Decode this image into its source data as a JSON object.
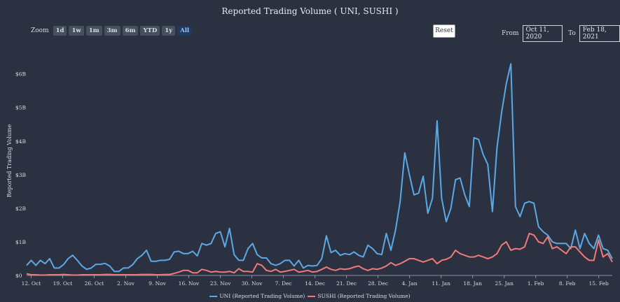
{
  "chart_data": {
    "type": "line",
    "title": "Reported Trading Volume ( UNI, SUSHI )",
    "ylabel": "Reported Trading Volume",
    "ylim": [
      0,
      6.7
    ],
    "y_ticks": [
      "$0",
      "$1B",
      "$2B",
      "$3B",
      "$4B",
      "$5B",
      "$6B"
    ],
    "y_tick_values": [
      0,
      1,
      2,
      3,
      4,
      5,
      6
    ],
    "x_ticks": [
      "12. Oct",
      "19. Oct",
      "26. Oct",
      "2. Nov",
      "9. Nov",
      "16. Nov",
      "23. Nov",
      "30. Nov",
      "7. Dec",
      "14. Dec",
      "21. Dec",
      "28. Dec",
      "4. Jan",
      "11. Jan",
      "18. Jan",
      "25. Jan",
      "1. Feb",
      "8. Feb",
      "15. Feb"
    ],
    "x_start": "2020-10-11",
    "x_end": "2021-02-18",
    "series": [
      {
        "name": "UNI (Reported Trading Volume)",
        "color": "#5aa9e6",
        "values": [
          0.3,
          0.45,
          0.3,
          0.45,
          0.35,
          0.5,
          0.22,
          0.22,
          0.32,
          0.5,
          0.6,
          0.45,
          0.28,
          0.18,
          0.22,
          0.33,
          0.33,
          0.36,
          0.28,
          0.12,
          0.12,
          0.22,
          0.22,
          0.32,
          0.5,
          0.6,
          0.75,
          0.42,
          0.42,
          0.45,
          0.45,
          0.48,
          0.7,
          0.72,
          0.65,
          0.65,
          0.72,
          0.58,
          0.95,
          0.9,
          0.95,
          1.25,
          1.3,
          0.85,
          1.4,
          0.62,
          0.45,
          0.45,
          0.8,
          0.95,
          0.62,
          0.52,
          0.52,
          0.35,
          0.3,
          0.35,
          0.45,
          0.45,
          0.28,
          0.45,
          0.22,
          0.3,
          0.28,
          0.3,
          0.5,
          1.18,
          0.68,
          0.75,
          0.6,
          0.65,
          0.62,
          0.7,
          0.6,
          0.55,
          0.9,
          0.8,
          0.65,
          0.62,
          1.25,
          0.75,
          1.35,
          2.2,
          3.65,
          3.0,
          2.4,
          2.45,
          2.95,
          1.85,
          2.3,
          4.6,
          2.3,
          1.6,
          2.0,
          2.85,
          2.9,
          2.4,
          2.05,
          4.1,
          4.05,
          3.6,
          3.3,
          1.9,
          3.8,
          4.85,
          5.7,
          6.3,
          2.05,
          1.75,
          2.15,
          2.2,
          2.15,
          1.45,
          1.3,
          1.2,
          1.0,
          0.95,
          0.95,
          0.95,
          0.8,
          1.35,
          0.8,
          1.25,
          0.95,
          0.8,
          1.2,
          0.8,
          0.75,
          0.5
        ]
      },
      {
        "name": "SUSHI (Reported Trading Volume)",
        "color": "#f07a7a",
        "values": [
          0.05,
          0.02,
          0.02,
          0.01,
          0.01,
          0.02,
          0.02,
          0.02,
          0.03,
          0.02,
          0.01,
          0.01,
          0.02,
          0.02,
          0.02,
          0.02,
          0.02,
          0.03,
          0.03,
          0.02,
          0.02,
          0.02,
          0.02,
          0.02,
          0.02,
          0.03,
          0.03,
          0.03,
          0.02,
          0.02,
          0.03,
          0.03,
          0.06,
          0.1,
          0.15,
          0.15,
          0.08,
          0.08,
          0.18,
          0.15,
          0.1,
          0.12,
          0.1,
          0.1,
          0.12,
          0.08,
          0.2,
          0.12,
          0.12,
          0.1,
          0.35,
          0.3,
          0.15,
          0.12,
          0.18,
          0.1,
          0.12,
          0.15,
          0.18,
          0.1,
          0.12,
          0.15,
          0.1,
          0.12,
          0.18,
          0.25,
          0.18,
          0.15,
          0.2,
          0.18,
          0.2,
          0.25,
          0.28,
          0.2,
          0.15,
          0.2,
          0.18,
          0.22,
          0.28,
          0.38,
          0.3,
          0.35,
          0.42,
          0.5,
          0.5,
          0.45,
          0.4,
          0.45,
          0.5,
          0.35,
          0.45,
          0.48,
          0.55,
          0.75,
          0.65,
          0.6,
          0.55,
          0.55,
          0.6,
          0.55,
          0.5,
          0.55,
          0.65,
          0.9,
          1.0,
          0.75,
          0.8,
          0.78,
          0.85,
          1.25,
          1.2,
          1.0,
          0.95,
          1.15,
          0.8,
          0.85,
          0.75,
          0.65,
          0.85,
          0.85,
          0.7,
          0.55,
          0.45,
          0.45,
          1.05,
          0.55,
          0.65,
          0.4
        ]
      }
    ]
  },
  "toolbar": {
    "zoom_label": "Zoom",
    "zoom_buttons": [
      "1d",
      "1w",
      "1m",
      "3m",
      "6m",
      "YTD",
      "1y",
      "All"
    ],
    "active_zoom": "All",
    "reset_label": "Reset",
    "from_label": "From",
    "from_value": "Oct 11, 2020",
    "to_label": "To",
    "to_value": "Feb 18, 2021"
  }
}
